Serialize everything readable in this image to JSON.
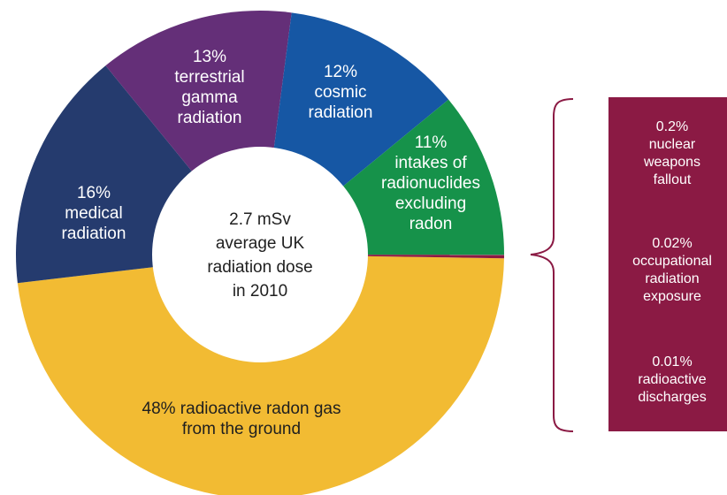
{
  "chart_data": {
    "type": "pie",
    "center_label": [
      "2.7 mSv",
      "average UK",
      "radiation dose",
      "in 2010"
    ],
    "slices": [
      {
        "value": 48,
        "label_lines": [
          "48% radioactive radon gas",
          "from the ground"
        ],
        "color": "#f2bb33"
      },
      {
        "value": 16,
        "label_lines": [
          "16%",
          "medical",
          "radiation"
        ],
        "color": "#253b6e"
      },
      {
        "value": 13,
        "label_lines": [
          "13%",
          "terrestrial",
          "gamma",
          "radiation"
        ],
        "color": "#642f78"
      },
      {
        "value": 12,
        "label_lines": [
          "12%",
          "cosmic",
          "radiation"
        ],
        "color": "#1657a4"
      },
      {
        "value": 11,
        "label_lines": [
          "11%",
          "intakes of",
          "radionuclides",
          "excluding",
          "radon"
        ],
        "color": "#16924a"
      },
      {
        "value": 0.23,
        "label_lines": [],
        "color": "#8b1a44"
      }
    ],
    "breakdown": [
      {
        "lines": [
          "0.2%",
          "nuclear",
          "weapons",
          "fallout"
        ]
      },
      {
        "lines": [
          "0.02%",
          "occupational",
          "radiation",
          "exposure"
        ]
      },
      {
        "lines": [
          "0.01%",
          "radioactive",
          "discharges"
        ]
      }
    ],
    "breakdown_color": "#8b1a44",
    "bracket_color": "#8b1a44"
  }
}
